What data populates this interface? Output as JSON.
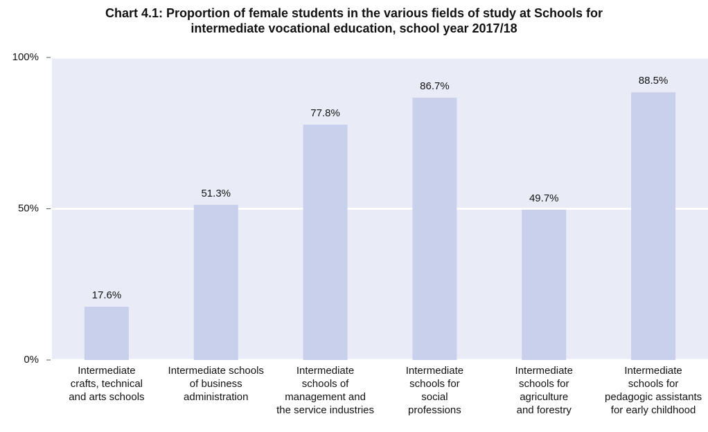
{
  "chart_data": {
    "type": "bar",
    "title": "Chart 4.1:  Proportion of female students in the various fields of study at Schools for\nintermediate vocational education, school year 2017/18",
    "categories": [
      "Intermediate\ncrafts, technical\nand arts schools",
      "Intermediate schools\nof business\nadministration",
      "Intermediate\nschools of\nmanagement and\nthe service industries",
      "Intermediate\nschools for\nsocial\nprofessions",
      "Intermediate\nschools for\nagriculture\nand forestry",
      "Intermediate\nschools for\npedagogic assistants\nfor early childhood"
    ],
    "values": [
      17.6,
      51.3,
      77.8,
      86.7,
      49.7,
      88.5
    ],
    "value_labels": [
      "17.6%",
      "51.3%",
      "77.8%",
      "86.7%",
      "49.7%",
      "88.5%"
    ],
    "color": "#c9d0ec",
    "ylim": [
      0,
      100
    ],
    "yticks": [
      {
        "value": 0,
        "label": "0%"
      },
      {
        "value": 50,
        "label": "50%"
      },
      {
        "value": 100,
        "label": "100%"
      }
    ],
    "grid": true
  }
}
